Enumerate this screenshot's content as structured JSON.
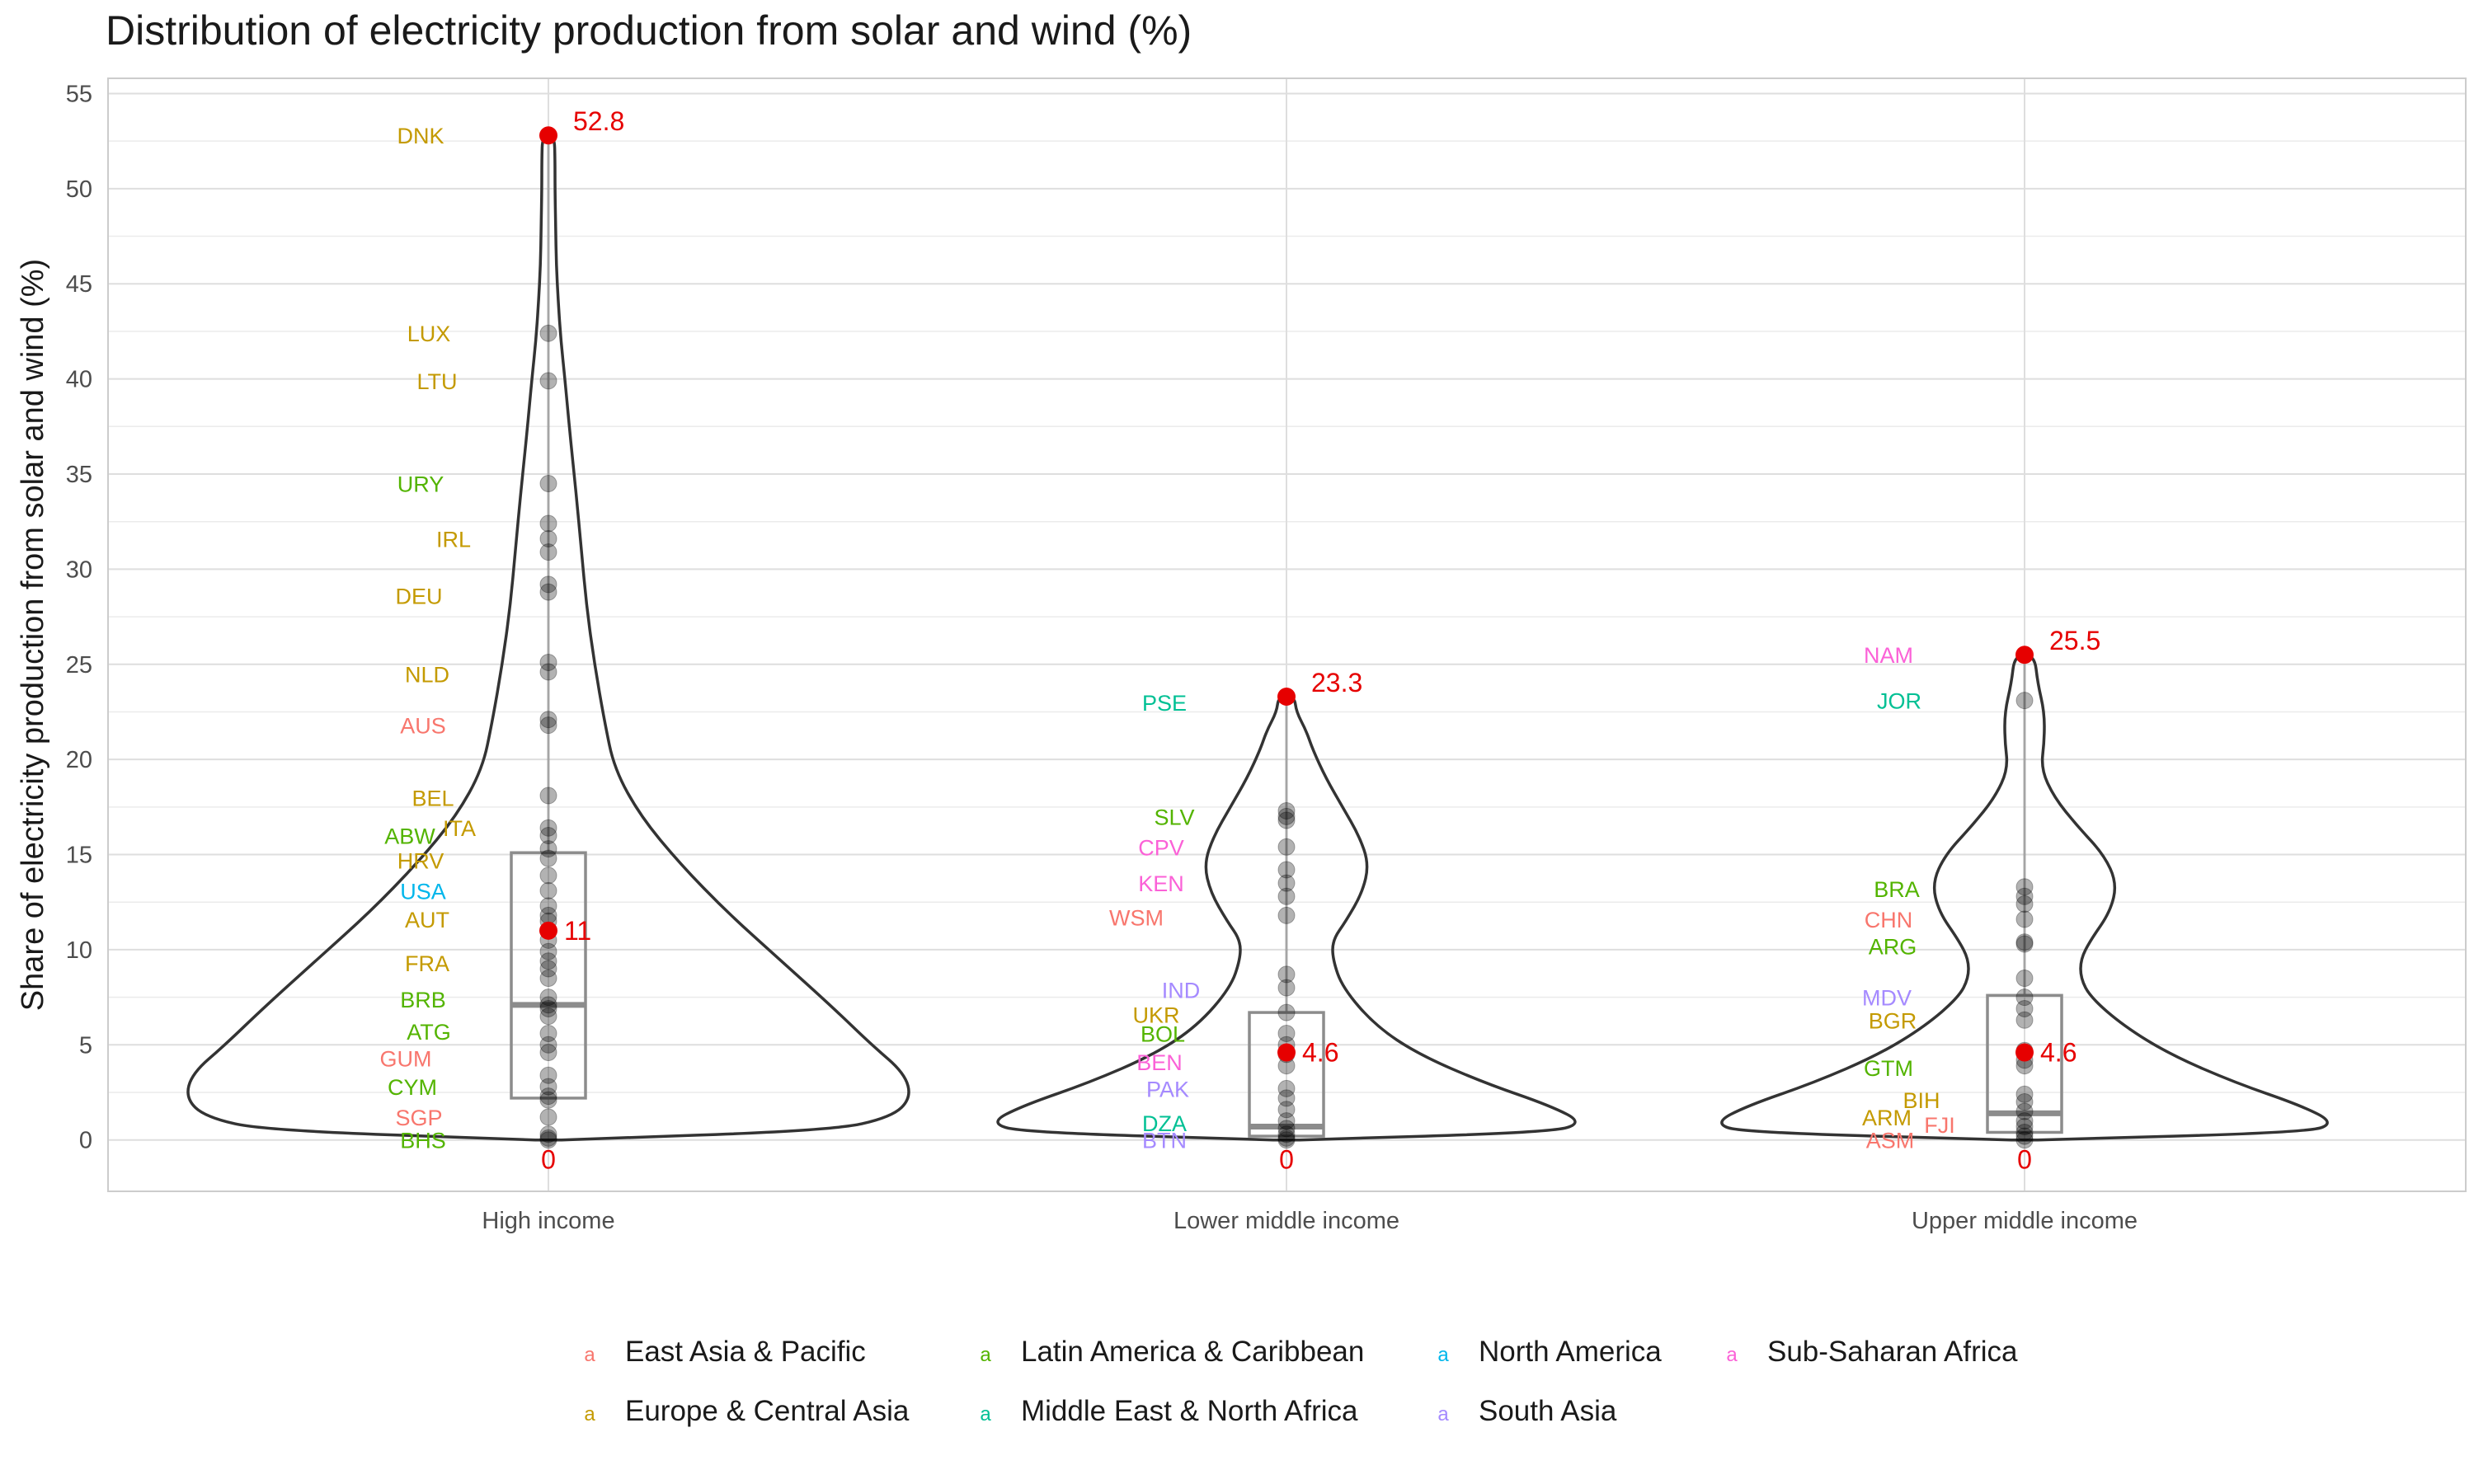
{
  "chart_data": {
    "type": "violin",
    "title": "Distribution of electricity production from solar and wind (%)",
    "xlabel": "",
    "ylabel": "Share of electricity production from solar and wind (%)",
    "ylim": [
      -2.7,
      55.8
    ],
    "yticks": [
      0,
      5,
      10,
      15,
      20,
      25,
      30,
      35,
      40,
      45,
      50,
      55
    ],
    "grid": true,
    "legend_position": "bottom",
    "legend_key_glyph": "a",
    "regions": [
      {
        "name": "East Asia & Pacific",
        "color": "#F8766D"
      },
      {
        "name": "Europe & Central Asia",
        "color": "#C49A00"
      },
      {
        "name": "Latin America & Caribbean",
        "color": "#53B400"
      },
      {
        "name": "Middle East & North Africa",
        "color": "#00C094"
      },
      {
        "name": "North America",
        "color": "#00B6EB"
      },
      {
        "name": "South Asia",
        "color": "#A58AFF"
      },
      {
        "name": "Sub-Saharan Africa",
        "color": "#FB61D7"
      }
    ],
    "groups": [
      {
        "name": "High income",
        "max": 52.8,
        "max_label": "52.8",
        "median": 11.0,
        "median_label": "11",
        "min": 0,
        "min_label": "0",
        "box": {
          "q1": 2.2,
          "median": 7.1,
          "q3": 15.1
        },
        "violin_profile": [
          [
            0,
            0.02
          ],
          [
            0.5,
            0.43
          ],
          [
            1.2,
            0.52
          ],
          [
            2.2,
            0.55
          ],
          [
            3.5,
            0.54
          ],
          [
            5,
            0.49
          ],
          [
            7,
            0.43
          ],
          [
            9.5,
            0.35
          ],
          [
            12,
            0.27
          ],
          [
            14.5,
            0.2
          ],
          [
            17,
            0.14
          ],
          [
            19.5,
            0.1
          ],
          [
            22,
            0.085
          ],
          [
            25,
            0.07
          ],
          [
            28,
            0.058
          ],
          [
            31,
            0.05
          ],
          [
            34,
            0.042
          ],
          [
            37,
            0.033
          ],
          [
            40,
            0.025
          ],
          [
            42,
            0.019
          ],
          [
            44,
            0.015
          ],
          [
            46,
            0.012
          ],
          [
            48,
            0.011
          ],
          [
            50,
            0.01
          ],
          [
            51.5,
            0.01
          ],
          [
            52.8,
            0.009
          ]
        ],
        "points": [
          52.8,
          42.4,
          39.9,
          34.5,
          32.4,
          31.6,
          30.9,
          29.2,
          28.8,
          25.1,
          24.6,
          22.1,
          21.8,
          18.1,
          16.4,
          16.0,
          15.3,
          14.8,
          13.9,
          13.1,
          12.3,
          11.8,
          11.5,
          10.5,
          9.9,
          9.4,
          9.0,
          8.5,
          7.5,
          7.1,
          6.9,
          6.5,
          5.6,
          5.0,
          4.6,
          3.4,
          2.8,
          2.3,
          2.1,
          1.2,
          0.3,
          0.1,
          0.0
        ]
      },
      {
        "name": "Lower middle income",
        "max": 23.3,
        "max_label": "23.3",
        "median": 4.6,
        "median_label": "4.6",
        "min": 0,
        "min_label": "0",
        "box": {
          "q1": 0.2,
          "median": 0.7,
          "q3": 6.7
        },
        "violin_profile": [
          [
            0,
            0.02
          ],
          [
            0.4,
            0.4
          ],
          [
            0.9,
            0.45
          ],
          [
            1.8,
            0.4
          ],
          [
            3,
            0.3
          ],
          [
            4.5,
            0.2
          ],
          [
            6,
            0.135
          ],
          [
            8,
            0.085
          ],
          [
            9.5,
            0.07
          ],
          [
            10.5,
            0.07
          ],
          [
            11.5,
            0.09
          ],
          [
            13,
            0.115
          ],
          [
            14.5,
            0.125
          ],
          [
            16,
            0.11
          ],
          [
            17.5,
            0.085
          ],
          [
            19,
            0.06
          ],
          [
            20.5,
            0.04
          ],
          [
            21.5,
            0.03
          ],
          [
            22.5,
            0.015
          ],
          [
            23.3,
            0.012
          ]
        ],
        "points": [
          23.3,
          17.3,
          17.0,
          16.8,
          15.4,
          14.2,
          13.5,
          12.8,
          11.8,
          8.7,
          8.0,
          6.7,
          5.6,
          5.0,
          4.5,
          3.9,
          2.7,
          2.2,
          1.6,
          1.0,
          0.6,
          0.3,
          0.1,
          0.0
        ]
      },
      {
        "name": "Upper middle income",
        "max": 25.5,
        "max_label": "25.5",
        "median": 4.6,
        "median_label": "4.6",
        "min": 0,
        "min_label": "0",
        "box": {
          "q1": 0.4,
          "median": 1.4,
          "q3": 7.6
        },
        "violin_profile": [
          [
            0,
            0.02
          ],
          [
            0.4,
            0.43
          ],
          [
            0.9,
            0.47
          ],
          [
            1.8,
            0.42
          ],
          [
            3,
            0.32
          ],
          [
            4.5,
            0.22
          ],
          [
            6,
            0.15
          ],
          [
            7.5,
            0.1
          ],
          [
            8.5,
            0.085
          ],
          [
            9.5,
            0.085
          ],
          [
            10.5,
            0.1
          ],
          [
            12,
            0.13
          ],
          [
            13.5,
            0.14
          ],
          [
            15,
            0.12
          ],
          [
            16.5,
            0.08
          ],
          [
            18,
            0.045
          ],
          [
            19.5,
            0.025
          ],
          [
            21,
            0.03
          ],
          [
            22.5,
            0.03
          ],
          [
            24,
            0.02
          ],
          [
            25.5,
            0.015
          ]
        ],
        "points": [
          25.5,
          23.1,
          13.3,
          12.8,
          12.4,
          11.6,
          10.4,
          10.3,
          8.5,
          7.5,
          6.9,
          6.3,
          4.7,
          4.2,
          3.9,
          2.4,
          2.0,
          1.5,
          1.0,
          0.7,
          0.4,
          0.2,
          0.0
        ]
      }
    ],
    "country_labels": [
      {
        "group": 0,
        "code": "DNK",
        "y": 52.8,
        "region": 1
      },
      {
        "group": 0,
        "code": "LUX",
        "y": 42.4,
        "region": 1
      },
      {
        "group": 0,
        "code": "LTU",
        "y": 39.9,
        "region": 1
      },
      {
        "group": 0,
        "code": "URY",
        "y": 34.5,
        "region": 2
      },
      {
        "group": 0,
        "code": "IRL",
        "y": 31.6,
        "region": 1
      },
      {
        "group": 0,
        "code": "DEU",
        "y": 28.6,
        "region": 1
      },
      {
        "group": 0,
        "code": "NLD",
        "y": 24.5,
        "region": 1
      },
      {
        "group": 0,
        "code": "AUS",
        "y": 21.8,
        "region": 0
      },
      {
        "group": 0,
        "code": "BEL",
        "y": 18.0,
        "region": 1
      },
      {
        "group": 0,
        "code": "ITA",
        "y": 16.4,
        "region": 1
      },
      {
        "group": 0,
        "code": "ABW",
        "y": 16.0,
        "region": 2
      },
      {
        "group": 0,
        "code": "HRV",
        "y": 14.7,
        "region": 1
      },
      {
        "group": 0,
        "code": "USA",
        "y": 13.1,
        "region": 4
      },
      {
        "group": 0,
        "code": "AUT",
        "y": 11.6,
        "region": 1
      },
      {
        "group": 0,
        "code": "FRA",
        "y": 9.3,
        "region": 1
      },
      {
        "group": 0,
        "code": "BRB",
        "y": 7.4,
        "region": 2
      },
      {
        "group": 0,
        "code": "ATG",
        "y": 5.7,
        "region": 2
      },
      {
        "group": 0,
        "code": "GUM",
        "y": 4.3,
        "region": 0
      },
      {
        "group": 0,
        "code": "CYM",
        "y": 2.8,
        "region": 2
      },
      {
        "group": 0,
        "code": "SGP",
        "y": 1.2,
        "region": 0
      },
      {
        "group": 0,
        "code": "BHS",
        "y": 0.0,
        "region": 2
      },
      {
        "group": 1,
        "code": "PSE",
        "y": 23.0,
        "region": 3
      },
      {
        "group": 1,
        "code": "SLV",
        "y": 17.0,
        "region": 2
      },
      {
        "group": 1,
        "code": "CPV",
        "y": 15.4,
        "region": 6
      },
      {
        "group": 1,
        "code": "KEN",
        "y": 13.5,
        "region": 6
      },
      {
        "group": 1,
        "code": "WSM",
        "y": 11.7,
        "region": 0
      },
      {
        "group": 1,
        "code": "IND",
        "y": 7.9,
        "region": 5
      },
      {
        "group": 1,
        "code": "UKR",
        "y": 6.6,
        "region": 1
      },
      {
        "group": 1,
        "code": "BOL",
        "y": 5.6,
        "region": 2
      },
      {
        "group": 1,
        "code": "BEN",
        "y": 4.1,
        "region": 6
      },
      {
        "group": 1,
        "code": "PAK",
        "y": 2.7,
        "region": 5
      },
      {
        "group": 1,
        "code": "DZA",
        "y": 0.9,
        "region": 3
      },
      {
        "group": 1,
        "code": "BTN",
        "y": 0.0,
        "region": 5
      },
      {
        "group": 2,
        "code": "NAM",
        "y": 25.5,
        "region": 6
      },
      {
        "group": 2,
        "code": "JOR",
        "y": 23.1,
        "region": 3
      },
      {
        "group": 2,
        "code": "BRA",
        "y": 13.2,
        "region": 2
      },
      {
        "group": 2,
        "code": "CHN",
        "y": 11.6,
        "region": 0
      },
      {
        "group": 2,
        "code": "ARG",
        "y": 10.2,
        "region": 2
      },
      {
        "group": 2,
        "code": "MDV",
        "y": 7.5,
        "region": 5
      },
      {
        "group": 2,
        "code": "BGR",
        "y": 6.3,
        "region": 1
      },
      {
        "group": 2,
        "code": "GTM",
        "y": 3.8,
        "region": 2
      },
      {
        "group": 2,
        "code": "BIH",
        "y": 2.1,
        "region": 1
      },
      {
        "group": 2,
        "code": "ARM",
        "y": 1.2,
        "region": 1
      },
      {
        "group": 2,
        "code": "FJI",
        "y": 0.8,
        "region": 0
      },
      {
        "group": 2,
        "code": "ASM",
        "y": 0.0,
        "region": 0
      }
    ]
  }
}
